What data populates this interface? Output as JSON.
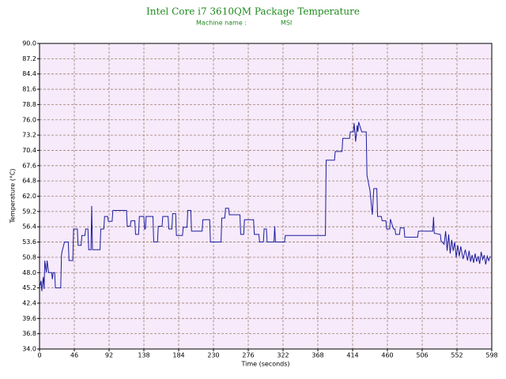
{
  "chart_data": {
    "type": "line",
    "title": "Intel Core i7 3610QM Package Temperature",
    "subtitle_label": "Machine name :",
    "subtitle_value": "MSI",
    "x_label": "Time (seconds)",
    "y_label": "Temperature (°C)",
    "xlim": [
      0,
      598
    ],
    "xticks": [
      0,
      46,
      92,
      138,
      184,
      230,
      276,
      322,
      368,
      414,
      460,
      506,
      552,
      598
    ],
    "ylim": [
      34,
      90
    ],
    "yticks": [
      {
        "value": 34,
        "label": "34.0"
      },
      36.8,
      39.6,
      42.4,
      45.2,
      {
        "value": 48,
        "label": "48.0"
      },
      50.8,
      53.6,
      56.4,
      59.2,
      {
        "value": 62,
        "label": "62.0"
      },
      64.8,
      67.6,
      70.4,
      73.2,
      {
        "value": 76,
        "label": "76.0"
      },
      78.8,
      81.6,
      84.4,
      87.2,
      {
        "value": 90,
        "label": "90.0"
      }
    ],
    "grid": true,
    "background": "#f6eafb",
    "series": [
      {
        "color": "#1c1c9c",
        "x": [
          0,
          2,
          3,
          5,
          6,
          7,
          9,
          10,
          12,
          16,
          17,
          18,
          20,
          21,
          28,
          29,
          30,
          33,
          38,
          39,
          44,
          45,
          50,
          51,
          55,
          56,
          60,
          61,
          64,
          65,
          68,
          69,
          70,
          80,
          81,
          85,
          86,
          90,
          91,
          96,
          97,
          115,
          116,
          120,
          121,
          126,
          127,
          131,
          132,
          138,
          139,
          140,
          141,
          150,
          151,
          156,
          157,
          162,
          163,
          170,
          171,
          175,
          176,
          180,
          181,
          189,
          190,
          195,
          196,
          200,
          201,
          215,
          216,
          225,
          226,
          240,
          241,
          245,
          246,
          250,
          251,
          265,
          266,
          270,
          271,
          283,
          284,
          290,
          291,
          296,
          297,
          300,
          301,
          310,
          311,
          312,
          324,
          325,
          378,
          379,
          390,
          391,
          400,
          401,
          410,
          411,
          415,
          416,
          418,
          420,
          421,
          422,
          426,
          432,
          433,
          437,
          440,
          442,
          446,
          447,
          452,
          453,
          458,
          459,
          463,
          464,
          468,
          470,
          471,
          476,
          477,
          482,
          483,
          500,
          501,
          520,
          521,
          522,
          530,
          531,
          535,
          537,
          539,
          541,
          543,
          545,
          547,
          549,
          551,
          553,
          555,
          557,
          560,
          563,
          566,
          568,
          570,
          572,
          574,
          576,
          578,
          580,
          582,
          584,
          586,
          588,
          590,
          592,
          594,
          596
        ],
        "values": [
          45.2,
          46.5,
          44.6,
          47.2,
          45,
          50.2,
          48,
          50.2,
          48,
          48,
          46.8,
          48,
          48,
          45.2,
          45.2,
          51.2,
          52,
          53.6,
          53.6,
          50.2,
          50.2,
          56,
          56,
          53,
          53,
          54.8,
          54.8,
          56,
          56,
          52.2,
          52.2,
          60.2,
          52.2,
          52.2,
          56,
          56,
          58.3,
          58.3,
          57.4,
          57.4,
          59.4,
          59.4,
          56.5,
          56.5,
          57.5,
          57.5,
          55,
          55,
          58.3,
          58.3,
          56,
          56,
          58.3,
          58.3,
          53.6,
          53.6,
          56.5,
          56.5,
          58.3,
          58.3,
          56,
          56,
          58.8,
          58.8,
          54.8,
          54.8,
          56.3,
          56.3,
          59.4,
          59.4,
          55.6,
          55.6,
          57.7,
          57.7,
          53.6,
          53.6,
          58,
          58,
          59.8,
          59.8,
          58.6,
          58.6,
          55,
          55,
          57.7,
          57.7,
          55,
          55,
          53.6,
          53.6,
          56,
          56,
          53.6,
          53.6,
          56.5,
          53.6,
          53.6,
          54.8,
          54.8,
          68.6,
          68.6,
          70.2,
          70.2,
          72.6,
          72.6,
          73.8,
          73.8,
          75.4,
          72,
          75,
          73.8,
          75.6,
          73.8,
          73.8,
          65.8,
          63,
          58.6,
          63.4,
          63.4,
          58.3,
          58.3,
          57.5,
          57.5,
          56,
          56,
          57.8,
          56,
          56,
          55,
          55,
          56.2,
          56.2,
          54.5,
          54.5,
          55.6,
          55.6,
          58.2,
          55.2,
          55,
          53.8,
          53.2,
          55.6,
          52,
          55,
          51.5,
          54,
          52,
          53.6,
          50.8,
          53,
          51,
          52.8,
          50.5,
          52.2,
          50.2,
          52,
          50,
          51.2,
          49.8,
          51.5,
          50,
          51,
          49.6,
          51.8,
          50.4,
          51.2,
          49.5,
          51,
          50.2,
          51
        ]
      }
    ]
  }
}
